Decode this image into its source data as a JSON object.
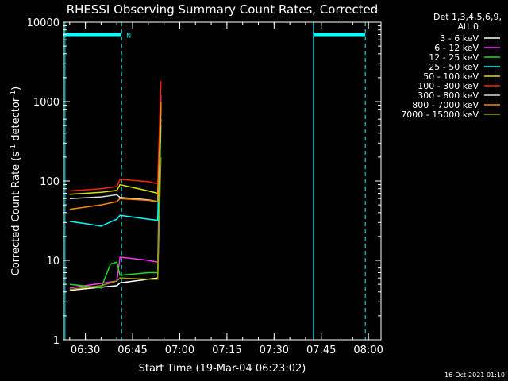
{
  "chart_data": {
    "type": "line",
    "title": "RHESSI Observing Summary Count Rates, Corrected",
    "xlabel": "Start Time (19-Mar-04 06:23:02)",
    "ylabel": "Corrected Count Rate (s⁻¹ detector⁻¹)",
    "ylabel_parts": {
      "main": "Corrected Count Rate (s",
      "sup1": "-1",
      "mid": " detector",
      "sup2": "-1",
      "end": ")"
    },
    "y_scale": "log",
    "ylim": [
      1,
      10000
    ],
    "xlim": [
      "06:23:02",
      "08:04:00"
    ],
    "x_ticks": [
      "06:30",
      "06:45",
      "07:00",
      "07:15",
      "07:30",
      "07:45",
      "08:00"
    ],
    "y_ticks": [
      "1",
      "10",
      "100",
      "1000",
      "10000"
    ],
    "legend_header": [
      "Det 1,3,4,5,6,9,",
      "Att 0"
    ],
    "legend_position": "right",
    "series": [
      {
        "name": "3 - 6 keV",
        "color": "#ffffff",
        "x": [
          "06:25",
          "06:40",
          "06:41",
          "06:50",
          "06:53",
          "06:54"
        ],
        "values": [
          4.2,
          4.8,
          5.2,
          5.8,
          6.0,
          1000
        ]
      },
      {
        "name": "6 - 12 keV",
        "color": "#ff33ff",
        "x": [
          "06:25",
          "06:40",
          "06:41",
          "06:50",
          "06:53",
          "06:54"
        ],
        "values": [
          4.5,
          5.5,
          11.0,
          10.0,
          9.5,
          1200
        ]
      },
      {
        "name": "12 - 25 keV",
        "color": "#22dd22",
        "x": [
          "06:25",
          "06:35",
          "06:38",
          "06:40",
          "06:41",
          "06:50",
          "06:53",
          "06:54"
        ],
        "values": [
          5.0,
          4.5,
          9.0,
          9.5,
          6.5,
          7.0,
          7.0,
          500
        ]
      },
      {
        "name": "25 - 50 keV",
        "color": "#00ffff",
        "x": [
          "06:25",
          "06:30",
          "06:35",
          "06:40",
          "06:41",
          "06:50",
          "06:53",
          "06:54"
        ],
        "values": [
          31,
          29,
          27,
          33,
          37,
          33,
          32,
          800
        ]
      },
      {
        "name": "50 - 100 keV",
        "color": "#dddd00",
        "x": [
          "06:25",
          "06:35",
          "06:40",
          "06:41",
          "06:50",
          "06:53",
          "06:54"
        ],
        "values": [
          68,
          72,
          76,
          90,
          75,
          70,
          1000
        ]
      },
      {
        "name": "100 - 300 keV",
        "color": "#ff2200",
        "x": [
          "06:25",
          "06:35",
          "06:40",
          "06:41",
          "06:50",
          "06:53",
          "06:54"
        ],
        "values": [
          75,
          80,
          85,
          105,
          98,
          92,
          1800
        ]
      },
      {
        "name": "300 - 800 keV",
        "color": "#dddddd",
        "x": [
          "06:25",
          "06:35",
          "06:40",
          "06:41",
          "06:50",
          "06:53",
          "06:54"
        ],
        "values": [
          60,
          63,
          67,
          62,
          58,
          55,
          600
        ]
      },
      {
        "name": "800 - 7000 keV",
        "color": "#ff8800",
        "x": [
          "06:25",
          "06:35",
          "06:40",
          "06:41",
          "06:50",
          "06:53",
          "06:54"
        ],
        "values": [
          44,
          50,
          55,
          60,
          57,
          55,
          900
        ]
      },
      {
        "name": "7000 - 15000 keV",
        "color": "#999900",
        "x": [
          "06:25",
          "06:35",
          "06:40",
          "06:41",
          "06:50",
          "06:53",
          "06:54"
        ],
        "values": [
          4.3,
          4.8,
          5.5,
          6.0,
          5.8,
          5.8,
          200
        ]
      }
    ],
    "flags": {
      "color": "#00ffff",
      "intervals": [
        [
          "06:23:02",
          "06:41:30"
        ],
        [
          "07:42:30",
          "07:59:00"
        ]
      ],
      "level": 7000,
      "dashed_lines": [
        "06:41:30",
        "07:59:00"
      ],
      "solid_lines": [
        "06:23:30",
        "07:42:30"
      ],
      "label": "N"
    },
    "grid": false
  },
  "timestamp": "16-Oct-2021 01:10"
}
